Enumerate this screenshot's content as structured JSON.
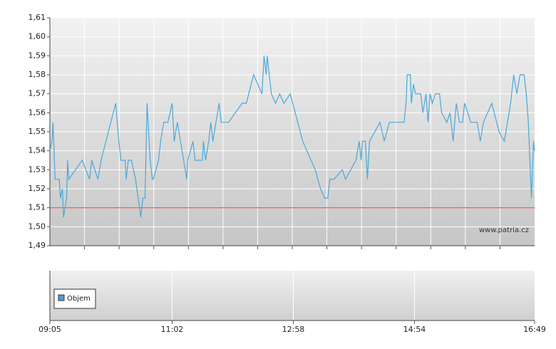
{
  "chart_data": {
    "type": "line",
    "xlim": [
      545,
      1009
    ],
    "xticks": [
      {
        "value": 545,
        "label": "09:05"
      },
      {
        "value": 662,
        "label": "11:02"
      },
      {
        "value": 778,
        "label": "12:58"
      },
      {
        "value": 894,
        "label": "14:54"
      },
      {
        "value": 1009,
        "label": "16:49"
      }
    ],
    "ylim": [
      1.49,
      1.61
    ],
    "yticks": [
      {
        "value": 1.49,
        "label": "1,49"
      },
      {
        "value": 1.5,
        "label": "1,50"
      },
      {
        "value": 1.51,
        "label": "1,51"
      },
      {
        "value": 1.52,
        "label": "1,52"
      },
      {
        "value": 1.53,
        "label": "1,53"
      },
      {
        "value": 1.54,
        "label": "1,54"
      },
      {
        "value": 1.55,
        "label": "1,55"
      },
      {
        "value": 1.56,
        "label": "1,56"
      },
      {
        "value": 1.57,
        "label": "1,57"
      },
      {
        "value": 1.58,
        "label": "1,58"
      },
      {
        "value": 1.59,
        "label": "1,59"
      },
      {
        "value": 1.6,
        "label": "1,60"
      },
      {
        "value": 1.61,
        "label": "1,61"
      }
    ],
    "grid": true,
    "reference_line": {
      "value": 1.51,
      "color": "#e05050"
    },
    "watermark": "www.patria.cz",
    "legend": "Objem",
    "legend_color": "#4a9ed6",
    "series": [
      {
        "color": "#4aa8d8",
        "x": [
          545,
          547,
          548,
          550,
          552,
          554,
          555,
          557,
          558,
          561,
          562,
          563,
          576,
          583,
          585,
          591,
          594,
          608,
          611,
          613,
          617,
          618,
          620,
          623,
          627,
          632,
          634,
          636,
          638,
          641,
          643,
          644,
          649,
          651,
          654,
          658,
          662,
          664,
          667,
          676,
          677,
          682,
          684,
          691,
          692,
          694,
          697,
          699,
          701,
          707,
          709,
          716,
          729,
          733,
          740,
          748,
          750,
          752,
          753,
          757,
          761,
          765,
          769,
          775,
          787,
          799,
          804,
          808,
          811,
          813,
          817,
          825,
          828,
          838,
          841,
          843,
          844,
          847,
          849,
          851,
          861,
          865,
          870,
          884,
          886,
          887,
          890,
          891,
          893,
          895,
          900,
          902,
          905,
          907,
          909,
          911,
          914,
          918,
          920,
          925,
          928,
          931,
          934,
          937,
          940,
          942,
          948,
          954,
          957,
          960,
          968,
          975,
          980,
          986,
          989,
          992,
          995,
          999,
          1001,
          1003,
          1006,
          1008,
          1009
        ],
        "values": [
          1.54,
          1.545,
          1.555,
          1.525,
          1.525,
          1.525,
          1.515,
          1.52,
          1.505,
          1.515,
          1.535,
          1.525,
          1.535,
          1.525,
          1.535,
          1.525,
          1.535,
          1.565,
          1.545,
          1.535,
          1.535,
          1.525,
          1.535,
          1.535,
          1.525,
          1.505,
          1.515,
          1.515,
          1.565,
          1.535,
          1.525,
          1.525,
          1.535,
          1.545,
          1.555,
          1.555,
          1.565,
          1.545,
          1.555,
          1.525,
          1.535,
          1.545,
          1.535,
          1.535,
          1.545,
          1.535,
          1.545,
          1.555,
          1.545,
          1.565,
          1.555,
          1.555,
          1.565,
          1.565,
          1.58,
          1.57,
          1.59,
          1.58,
          1.59,
          1.57,
          1.565,
          1.57,
          1.565,
          1.57,
          1.545,
          1.53,
          1.52,
          1.515,
          1.515,
          1.525,
          1.525,
          1.53,
          1.525,
          1.535,
          1.545,
          1.535,
          1.545,
          1.545,
          1.525,
          1.545,
          1.555,
          1.545,
          1.555,
          1.555,
          1.565,
          1.58,
          1.58,
          1.565,
          1.575,
          1.57,
          1.57,
          1.56,
          1.57,
          1.555,
          1.57,
          1.565,
          1.57,
          1.57,
          1.56,
          1.555,
          1.56,
          1.545,
          1.565,
          1.555,
          1.555,
          1.565,
          1.555,
          1.555,
          1.545,
          1.555,
          1.565,
          1.55,
          1.545,
          1.565,
          1.58,
          1.57,
          1.58,
          1.58,
          1.57,
          1.555,
          1.515,
          1.545,
          1.54
        ]
      }
    ]
  }
}
